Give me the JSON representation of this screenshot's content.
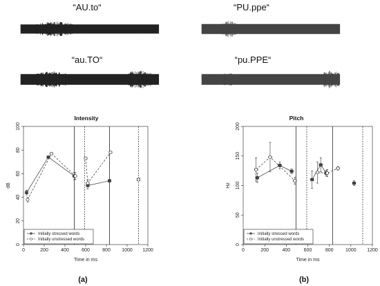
{
  "waveforms": [
    {
      "label": "“AU.to“"
    },
    {
      "label": "“PU.ppe“"
    },
    {
      "label": "“au.TO“"
    },
    {
      "label": "“pu.PPE“"
    }
  ],
  "panels": [
    {
      "label": "(a)"
    },
    {
      "label": "(b)"
    }
  ],
  "chart_data": [
    {
      "type": "line",
      "title": "Intensity",
      "xlabel": "Time in ms",
      "ylabel": "dB",
      "xlim": [
        0,
        1200
      ],
      "ylim": [
        0,
        100
      ],
      "xticks": [
        "0",
        "200",
        "400",
        "600",
        "800",
        "1000",
        "1200"
      ],
      "yticks": [
        "0",
        "20",
        "40",
        "60",
        "80",
        "100"
      ],
      "grid": false,
      "legend_position": "bottom-left",
      "legend": [
        "Initially stressed words",
        "Initially unstressed words"
      ],
      "vlines_solid": [
        490,
        830
      ],
      "vlines_dashed": [
        590,
        1110
      ],
      "series": [
        {
          "name": "Initially stressed words",
          "marker": "filled-square",
          "line": "solid",
          "segments": [
            [
              [
                30,
                44
              ],
              [
                240,
                74
              ],
              [
                490,
                58
              ]
            ],
            [
              [
                620,
                50
              ],
              [
                830,
                54
              ]
            ],
            [
              [
                1110,
                55
              ]
            ]
          ],
          "xerr": [
            12,
            14,
            14,
            14,
            14,
            14
          ],
          "yerr": [
            2,
            1,
            3,
            3,
            1,
            1
          ]
        },
        {
          "name": "Initially unstressed words",
          "marker": "open-circle",
          "line": "dashed",
          "segments": [
            [
              [
                40,
                38
              ],
              [
                270,
                77
              ],
              [
                500,
                58
              ]
            ],
            [
              [
                600,
                73
              ],
              [
                620,
                52
              ],
              [
                840,
                78
              ]
            ],
            [
              [
                1110,
                55
              ]
            ]
          ],
          "xerr": [
            12,
            14,
            14,
            14,
            14,
            14,
            14
          ],
          "yerr": [
            2,
            1,
            3,
            1,
            3,
            1,
            1
          ]
        }
      ]
    },
    {
      "type": "line",
      "title": "Pitch",
      "xlabel": "Time in ms",
      "ylabel": "Hz",
      "xlim": [
        0,
        1200
      ],
      "ylim": [
        0,
        200
      ],
      "xticks": [
        "0",
        "200",
        "400",
        "600",
        "800",
        "1000",
        "1200"
      ],
      "yticks": [
        "0",
        "50",
        "100",
        "150",
        "200"
      ],
      "grid": false,
      "legend_position": "bottom-left",
      "legend": [
        "Initially stressed words",
        "Initially unstressed words"
      ],
      "vlines_solid": [
        490,
        830
      ],
      "vlines_dashed": [
        590,
        1110
      ],
      "series": [
        {
          "name": "Initially stressed words",
          "marker": "filled-square",
          "line": "solid",
          "segments": [
            [
              [
                130,
                113
              ],
              [
                340,
                134
              ],
              [
                450,
                124
              ]
            ],
            [
              [
                640,
                110
              ],
              [
                720,
                135
              ],
              [
                770,
                121
              ]
            ],
            [
              [
                1030,
                104
              ]
            ]
          ],
          "xerr": [
            15,
            15,
            15,
            15,
            15,
            15,
            15
          ],
          "yerr": [
            8,
            6,
            4,
            15,
            12,
            5,
            4
          ]
        },
        {
          "name": "Initially unstressed words",
          "marker": "open-circle",
          "line": "dashed",
          "segments": [
            [
              [
                120,
                127
              ],
              [
                250,
                148
              ],
              [
                480,
                108
              ]
            ],
            [
              [
                690,
                122
              ],
              [
                780,
                121
              ],
              [
                880,
                129
              ]
            ]
          ],
          "xerr": [
            15,
            15,
            15,
            15,
            15,
            15
          ],
          "yerr": [
            20,
            25,
            6,
            18,
            6,
            3
          ]
        }
      ]
    }
  ]
}
